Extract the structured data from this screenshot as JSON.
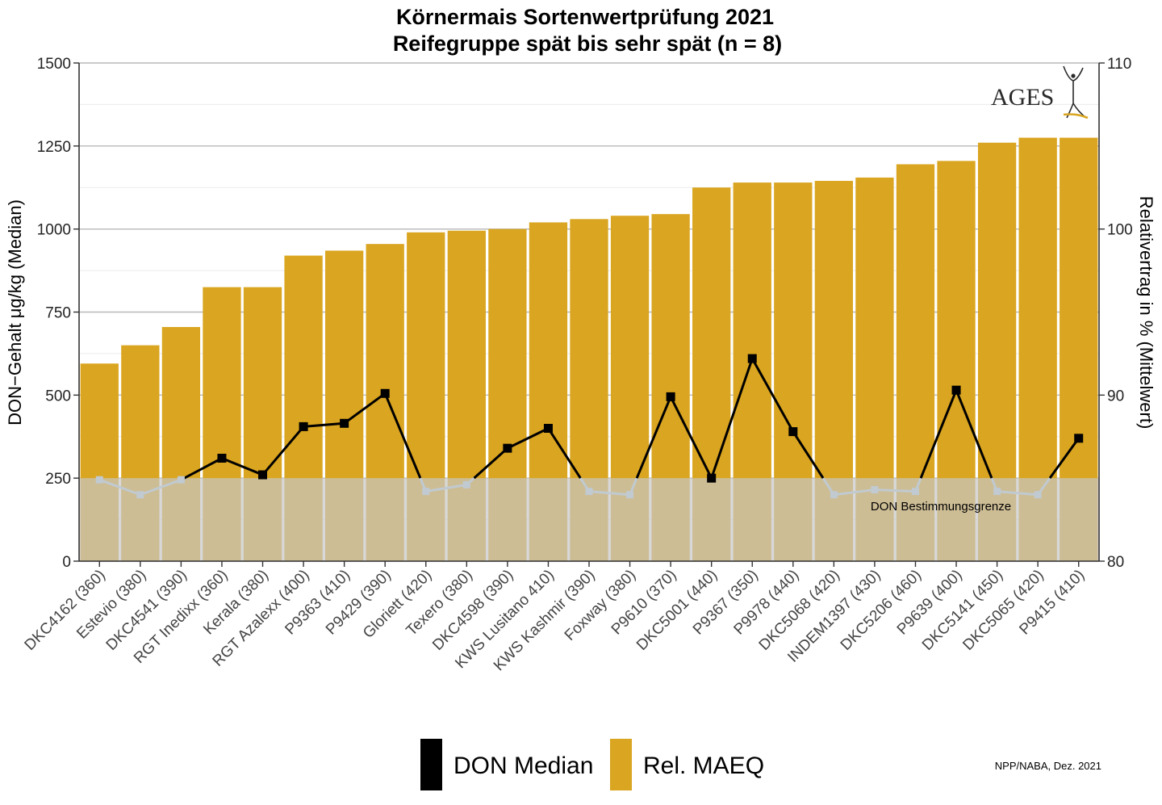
{
  "chart_data": {
    "type": "bar",
    "title_line1": "Körnermais Sortenwertprüfung 2021",
    "title_line2": "Reifegruppe spät bis sehr spät (n = 8)",
    "ylabel_left": "DON−Gehalt μg/kg (Median)",
    "ylabel_right": "Relativertrag in % (Mittelwert)",
    "ylim_left": [
      0,
      1500
    ],
    "ylim_right": [
      80,
      110
    ],
    "yticks_left": [
      "0",
      "250",
      "500",
      "750",
      "1000",
      "1250",
      "1500"
    ],
    "yticks_right": [
      "80",
      "90",
      "100",
      "110"
    ],
    "grid": true,
    "categories": [
      "DKC4162 (360)",
      "Estevio (380)",
      "DKC4541 (390)",
      "RGT Inedixx (360)",
      "Kerala (380)",
      "RGT Azalexx (400)",
      "P9363 (410)",
      "P9429 (390)",
      "Gloriett (420)",
      "Texero (380)",
      "DKC4598 (390)",
      "KWS Lusitano 410)",
      "KWS Kashmir (390)",
      "Foxway (380)",
      "P9610 (370)",
      "DKC5001 (440)",
      "P9367 (350)",
      "P9978 (440)",
      "DKC5068 (420)",
      "INDEM1397 (430)",
      "DKC5206 (460)",
      "P9639 (400)",
      "DKC5141 (450)",
      "DKC5065 (420)",
      "P9415 (410)"
    ],
    "series": [
      {
        "name": "Rel. MAEQ",
        "type": "bar",
        "axis": "right",
        "color": "#DAA520",
        "values": [
          91.9,
          93.0,
          94.1,
          96.5,
          96.5,
          98.4,
          98.7,
          99.1,
          99.8,
          99.9,
          100.0,
          100.4,
          100.6,
          100.8,
          100.9,
          102.5,
          102.8,
          102.8,
          102.9,
          103.1,
          103.9,
          104.1,
          105.2,
          105.5,
          105.5
        ]
      },
      {
        "name": "DON Median",
        "type": "line",
        "axis": "left",
        "color": "#000000",
        "below_limit_color": "#C0CAD0",
        "values": [
          245,
          200,
          245,
          310,
          260,
          405,
          415,
          505,
          210,
          230,
          340,
          400,
          210,
          200,
          495,
          250,
          610,
          390,
          200,
          215,
          210,
          515,
          210,
          200,
          370
        ]
      }
    ],
    "threshold": {
      "value": 250,
      "label": "DON Bestimmungsgrenze",
      "color": "#C8C8C8"
    },
    "legend": {
      "placement": "bottom",
      "items": [
        "DON Median",
        "Rel. MAEQ"
      ]
    },
    "credit": "NPP/NABA, Dez. 2021",
    "logo_text": "AGES"
  }
}
